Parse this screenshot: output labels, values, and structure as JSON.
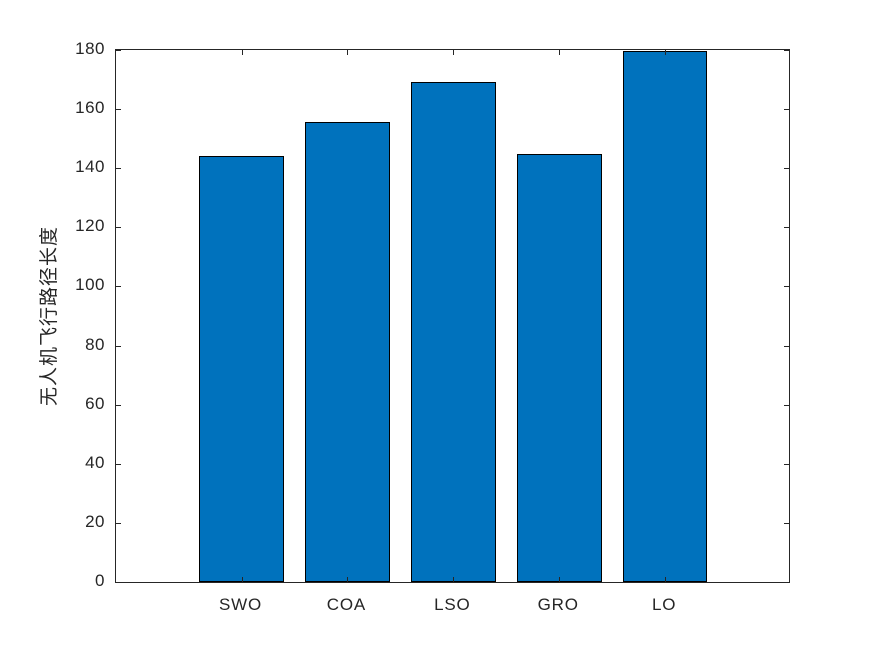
{
  "figure": {
    "background": "#ffffff"
  },
  "chart_data": {
    "type": "bar",
    "categories": [
      "SWO",
      "COA",
      "LSO",
      "GRO",
      "LO"
    ],
    "values": [
      144,
      155.5,
      169.3,
      144.8,
      179.7
    ],
    "title": "",
    "xlabel": "",
    "ylabel": "无人机飞行路径长度",
    "ylim": [
      0,
      180
    ],
    "yticks": [
      0,
      20,
      40,
      60,
      80,
      100,
      120,
      140,
      160,
      180
    ],
    "ytick_step": 20,
    "grid": false,
    "legend": "none",
    "bar_color": "#0072BD",
    "bar_edge_color": "#000000",
    "axis_color": "#262626",
    "tick_label_color": "#262626",
    "bar_width_fraction": 0.8
  }
}
